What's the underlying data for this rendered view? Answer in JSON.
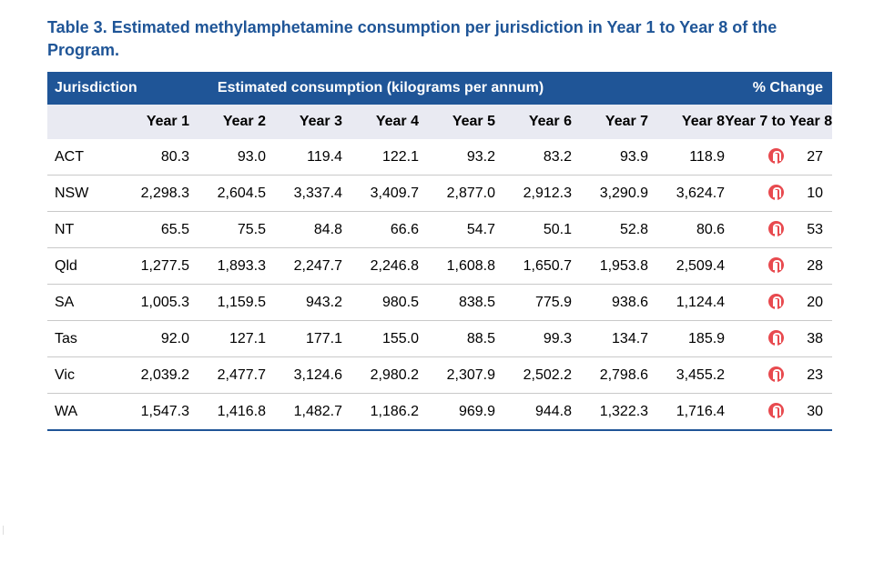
{
  "caption": "Table 3. Estimated methylamphetamine consumption per jurisdiction in Year 1 to Year 8 of the Program.",
  "header": {
    "jurisdiction": "Jurisdiction",
    "estimated": "Estimated consumption (kilograms per annum)",
    "pct_change": "% Change"
  },
  "subheader": {
    "years": [
      "Year 1",
      "Year 2",
      "Year 3",
      "Year 4",
      "Year 5",
      "Year 6",
      "Year 7",
      "Year 8"
    ],
    "change_period": "Year 7 to Year 8"
  },
  "rows": [
    {
      "name": "ACT",
      "values": [
        "80.3",
        "93.0",
        "119.4",
        "122.1",
        "93.2",
        "83.2",
        "93.9",
        "118.9"
      ],
      "change": "27",
      "change_icon": "increase-arrow-icon"
    },
    {
      "name": "NSW",
      "values": [
        "2,298.3",
        "2,604.5",
        "3,337.4",
        "3,409.7",
        "2,877.0",
        "2,912.3",
        "3,290.9",
        "3,624.7"
      ],
      "change": "10",
      "change_icon": "increase-arrow-icon"
    },
    {
      "name": "NT",
      "values": [
        "65.5",
        "75.5",
        "84.8",
        "66.6",
        "54.7",
        "50.1",
        "52.8",
        "80.6"
      ],
      "change": "53",
      "change_icon": "increase-arrow-icon"
    },
    {
      "name": "Qld",
      "values": [
        "1,277.5",
        "1,893.3",
        "2,247.7",
        "2,246.8",
        "1,608.8",
        "1,650.7",
        "1,953.8",
        "2,509.4"
      ],
      "change": "28",
      "change_icon": "increase-arrow-icon"
    },
    {
      "name": "SA",
      "values": [
        "1,005.3",
        "1,159.5",
        "943.2",
        "980.5",
        "838.5",
        "775.9",
        "938.6",
        "1,124.4"
      ],
      "change": "20",
      "change_icon": "increase-arrow-icon"
    },
    {
      "name": "Tas",
      "values": [
        "92.0",
        "127.1",
        "177.1",
        "155.0",
        "88.5",
        "99.3",
        "134.7",
        "185.9"
      ],
      "change": "38",
      "change_icon": "increase-arrow-icon"
    },
    {
      "name": "Vic",
      "values": [
        "2,039.2",
        "2,477.7",
        "3,124.6",
        "2,980.2",
        "2,307.9",
        "2,502.2",
        "2,798.6",
        "3,455.2"
      ],
      "change": "23",
      "change_icon": "increase-arrow-icon"
    },
    {
      "name": "WA",
      "values": [
        "1,547.3",
        "1,416.8",
        "1,482.7",
        "1,186.2",
        "969.9",
        "944.8",
        "1,322.3",
        "1,716.4"
      ],
      "change": "30",
      "change_icon": "increase-arrow-icon"
    }
  ],
  "colors": {
    "caption": "#1f5597",
    "header_bg": "#1f5597",
    "subheader_bg": "#e9eaf2",
    "increase_icon": "#e84a4f"
  }
}
